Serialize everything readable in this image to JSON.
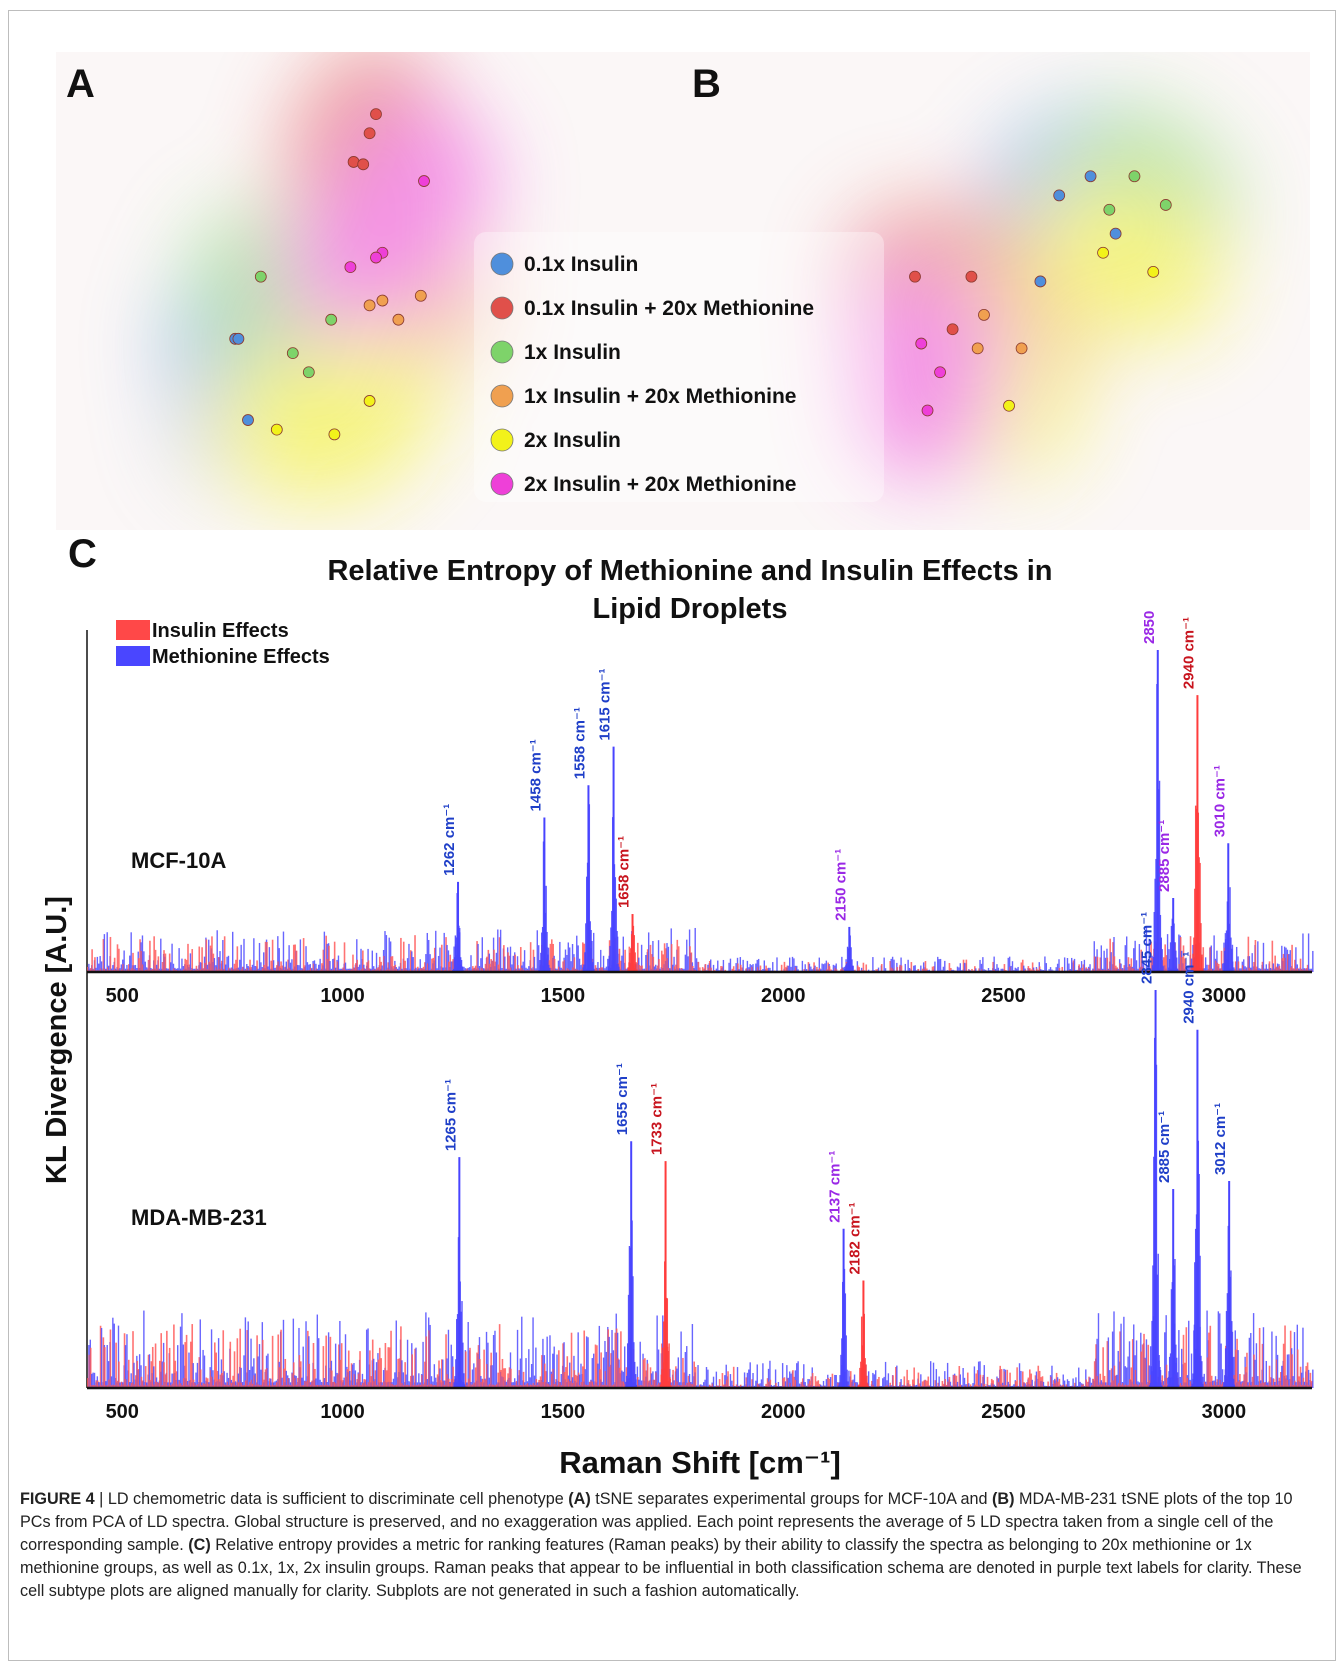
{
  "panels": {
    "a_letter": "A",
    "b_letter": "B",
    "c_letter": "C"
  },
  "legend": [
    {
      "label": "0.1x Insulin",
      "color": "#4f8fdc"
    },
    {
      "label": "0.1x Insulin + 20x Methionine",
      "color": "#e0504a"
    },
    {
      "label": "1x Insulin",
      "color": "#7ed36a"
    },
    {
      "label": "1x Insulin + 20x Methionine",
      "color": "#f0a050"
    },
    {
      "label": "2x Insulin",
      "color": "#f2f21a"
    },
    {
      "label": "2x Insulin + 20x Methionine",
      "color": "#ee40d8"
    }
  ],
  "chart_data": [
    {
      "type": "scatter",
      "title": "",
      "panel": "A",
      "series": [
        {
          "name": "0.1x Insulin",
          "points": [
            [
              0.28,
              0.6
            ],
            [
              0.285,
              0.6
            ],
            [
              0.3,
              0.77
            ]
          ]
        },
        {
          "name": "0.1x Insulin + 20x Methionine",
          "points": [
            [
              0.5,
              0.13
            ],
            [
              0.49,
              0.17
            ],
            [
              0.465,
              0.23
            ],
            [
              0.48,
              0.235
            ]
          ]
        },
        {
          "name": "1x Insulin",
          "points": [
            [
              0.32,
              0.47
            ],
            [
              0.43,
              0.56
            ],
            [
              0.37,
              0.63
            ],
            [
              0.395,
              0.67
            ]
          ]
        },
        {
          "name": "1x Insulin + 20x Methionine",
          "points": [
            [
              0.49,
              0.53
            ],
            [
              0.51,
              0.52
            ],
            [
              0.57,
              0.51
            ],
            [
              0.535,
              0.56
            ]
          ]
        },
        {
          "name": "2x Insulin",
          "points": [
            [
              0.49,
              0.73
            ],
            [
              0.345,
              0.79
            ],
            [
              0.435,
              0.8
            ]
          ]
        },
        {
          "name": "2x Insulin + 20x Methionine",
          "points": [
            [
              0.575,
              0.27
            ],
            [
              0.51,
              0.42
            ],
            [
              0.5,
              0.43
            ],
            [
              0.46,
              0.45
            ]
          ]
        }
      ]
    },
    {
      "type": "scatter",
      "title": "",
      "panel": "B",
      "series": [
        {
          "name": "0.1x Insulin",
          "points": [
            [
              0.6,
              0.3
            ],
            [
              0.65,
              0.26
            ],
            [
              0.69,
              0.38
            ],
            [
              0.57,
              0.48
            ]
          ]
        },
        {
          "name": "0.1x Insulin + 20x Methionine",
          "points": [
            [
              0.37,
              0.47
            ],
            [
              0.46,
              0.47
            ],
            [
              0.43,
              0.58
            ]
          ]
        },
        {
          "name": "1x Insulin",
          "points": [
            [
              0.72,
              0.26
            ],
            [
              0.77,
              0.32
            ],
            [
              0.68,
              0.33
            ]
          ]
        },
        {
          "name": "1x Insulin + 20x Methionine",
          "points": [
            [
              0.48,
              0.55
            ],
            [
              0.47,
              0.62
            ],
            [
              0.54,
              0.62
            ]
          ]
        },
        {
          "name": "2x Insulin",
          "points": [
            [
              0.67,
              0.42
            ],
            [
              0.75,
              0.46
            ],
            [
              0.52,
              0.74
            ]
          ]
        },
        {
          "name": "2x Insulin + 20x Methionine",
          "points": [
            [
              0.38,
              0.61
            ],
            [
              0.41,
              0.67
            ],
            [
              0.39,
              0.75
            ]
          ]
        }
      ]
    },
    {
      "type": "bar",
      "panel": "C",
      "title": "Relative Entropy of Methionine and Insulin Effects in Lipid Droplets",
      "xlabel": "Raman Shift [cm⁻¹]",
      "ylabel": "KL Divergence [A.U.]",
      "xlim": [
        420,
        3200
      ],
      "xticks": [
        500,
        1000,
        1500,
        2000,
        2500,
        3000
      ],
      "legend_position": "top-left",
      "legend": [
        {
          "name": "Insulin Effects",
          "color": "#ff4848"
        },
        {
          "name": "Methionine Effects",
          "color": "#4a46ff"
        }
      ],
      "subplots": [
        {
          "name": "MCF-10A",
          "peaks": [
            {
              "x": 1262,
              "height": 0.28,
              "label": "1262 cm⁻¹",
              "color": "#1f3fc8",
              "effect": "methionine"
            },
            {
              "x": 1458,
              "height": 0.48,
              "label": "1458 cm⁻¹",
              "color": "#1f3fc8",
              "effect": "methionine"
            },
            {
              "x": 1558,
              "height": 0.58,
              "label": "1558 cm⁻¹",
              "color": "#1f3fc8",
              "effect": "methionine"
            },
            {
              "x": 1615,
              "height": 0.7,
              "label": "1615 cm⁻¹",
              "color": "#1f3fc8",
              "effect": "methionine"
            },
            {
              "x": 1658,
              "height": 0.18,
              "label": "1658 cm⁻¹",
              "color": "#c8141e",
              "effect": "insulin"
            },
            {
              "x": 2150,
              "height": 0.14,
              "label": "2150 cm⁻¹",
              "color": "#9a28e6",
              "effect": "both"
            },
            {
              "x": 2850,
              "height": 1.0,
              "label": "2850 cm⁻¹",
              "color": "#9a28e6",
              "effect": "both"
            },
            {
              "x": 2885,
              "height": 0.23,
              "label": "2885 cm⁻¹",
              "color": "#9a28e6",
              "effect": "both"
            },
            {
              "x": 2940,
              "height": 0.86,
              "label": "2940 cm⁻¹",
              "color": "#c8141e",
              "effect": "insulin"
            },
            {
              "x": 3010,
              "height": 0.4,
              "label": "3010 cm⁻¹",
              "color": "#9a28e6",
              "effect": "both"
            }
          ]
        },
        {
          "name": "MDA-MB-231",
          "peaks": [
            {
              "x": 1265,
              "height": 0.58,
              "label": "1265 cm⁻¹",
              "color": "#1f3fc8",
              "effect": "methionine"
            },
            {
              "x": 1655,
              "height": 0.62,
              "label": "1655 cm⁻¹",
              "color": "#1f3fc8",
              "effect": "methionine"
            },
            {
              "x": 1733,
              "height": 0.57,
              "label": "1733 cm⁻¹",
              "color": "#c8141e",
              "effect": "insulin"
            },
            {
              "x": 2137,
              "height": 0.4,
              "label": "2137 cm⁻¹",
              "color": "#9a28e6",
              "effect": "both"
            },
            {
              "x": 2182,
              "height": 0.27,
              "label": "2182 cm⁻¹",
              "color": "#c8141e",
              "effect": "insulin"
            },
            {
              "x": 2845,
              "height": 1.0,
              "label": "2845 cm⁻¹",
              "color": "#1f3fc8",
              "effect": "methionine"
            },
            {
              "x": 2885,
              "height": 0.5,
              "label": "2885 cm⁻¹",
              "color": "#1f3fc8",
              "effect": "methionine"
            },
            {
              "x": 2940,
              "height": 0.9,
              "label": "2940 cm⁻¹",
              "color": "#1f3fc8",
              "effect": "methionine"
            },
            {
              "x": 3012,
              "height": 0.52,
              "label": "3012 cm⁻¹",
              "color": "#1f3fc8",
              "effect": "methionine"
            }
          ]
        }
      ]
    }
  ],
  "caption": {
    "lead": "FIGURE 4",
    "sep": " | ",
    "t1": "LD chemometric data is sufficient to discriminate cell phenotype ",
    "b1": "(A)",
    "t2": " tSNE separates experimental groups for MCF-10A and ",
    "b2": "(B)",
    "t3": " MDA-MB-231 tSNE plots of the top 10 PCs from PCA of LD spectra. Global structure is preserved, and no exaggeration was applied. Each point represents the average of 5 LD spectra taken from a single cell of the corresponding sample. ",
    "b3": "(C)",
    "t4": " Relative entropy provides a metric for ranking features (Raman peaks) by their ability to classify the spectra as belonging to 20x methionine or 1x methionine groups, as well as 0.1x, 1x, 2x insulin groups. Raman peaks that appear to be influential in both classification schema are denoted in purple text labels for clarity. These cell subtype plots are aligned manually for clarity. Subplots are not generated in such a fashion automatically."
  }
}
